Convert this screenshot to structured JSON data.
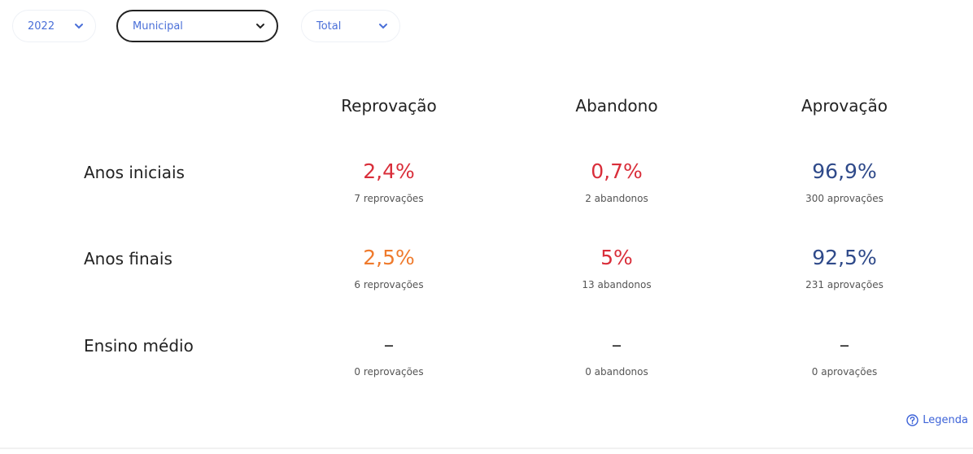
{
  "filters": [
    {
      "label": "2022",
      "active": false
    },
    {
      "label": "Municipal",
      "active": true
    },
    {
      "label": "Total",
      "active": false
    }
  ],
  "columns": [
    "Reprovação",
    "Abandono",
    "Aprovação"
  ],
  "rows": [
    {
      "label": "Anos iniciais",
      "cells": [
        {
          "value": "2,4%",
          "detail": "7 reprovações",
          "color": "#d92e3a"
        },
        {
          "value": "0,7%",
          "detail": "2 abandonos",
          "color": "#d92e3a"
        },
        {
          "value": "96,9%",
          "detail": "300 aprovações",
          "color": "#2f4a8a"
        }
      ]
    },
    {
      "label": "Anos finais",
      "cells": [
        {
          "value": "2,5%",
          "detail": "6 reprovações",
          "color": "#ef7a2c"
        },
        {
          "value": "5%",
          "detail": "13 abandonos",
          "color": "#d92e3a"
        },
        {
          "value": "92,5%",
          "detail": "231 aprovações",
          "color": "#2f4a8a"
        }
      ]
    },
    {
      "label": "Ensino médio",
      "cells": [
        {
          "value": "–",
          "detail": "0 reprovações",
          "color": "#333333"
        },
        {
          "value": "–",
          "detail": "0 abandonos",
          "color": "#333333"
        },
        {
          "value": "–",
          "detail": "0 aprovações",
          "color": "#333333"
        }
      ]
    }
  ],
  "legend": "Legenda"
}
